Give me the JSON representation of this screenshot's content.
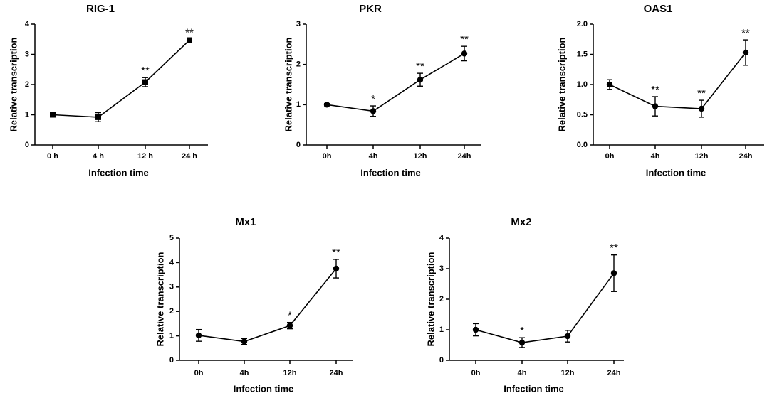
{
  "chart_data": [
    {
      "type": "line",
      "title": "RIG-1",
      "xlabel": "Infection time",
      "ylabel": "Relative transcription",
      "categories": [
        "0 h",
        "4 h",
        "12 h",
        "24 h"
      ],
      "values": [
        1.0,
        0.92,
        2.08,
        3.47
      ],
      "errors": [
        0.06,
        0.15,
        0.15,
        0.03
      ],
      "annotations": [
        "",
        "",
        "**",
        "**"
      ],
      "ylim": [
        0,
        4
      ],
      "yticks": [
        "0",
        "1",
        "2",
        "3",
        "4"
      ],
      "marker": "square"
    },
    {
      "type": "line",
      "title": "PKR",
      "xlabel": "Infection time",
      "ylabel": "Relative transcription",
      "categories": [
        "0h",
        "4h",
        "12h",
        "24h"
      ],
      "values": [
        1.0,
        0.84,
        1.62,
        2.27
      ],
      "errors": [
        0.03,
        0.13,
        0.16,
        0.18
      ],
      "annotations": [
        "",
        "*",
        "**",
        "**"
      ],
      "ylim": [
        0,
        3
      ],
      "yticks": [
        "0",
        "1",
        "2",
        "3"
      ],
      "marker": "circle"
    },
    {
      "type": "line",
      "title": "OAS1",
      "xlabel": "Infection time",
      "ylabel": "Relative transcription",
      "categories": [
        "0h",
        "4h",
        "12h",
        "24h"
      ],
      "values": [
        1.0,
        0.64,
        0.6,
        1.53
      ],
      "errors": [
        0.08,
        0.16,
        0.14,
        0.21
      ],
      "annotations": [
        "",
        "**",
        "**",
        "**"
      ],
      "ylim": [
        0,
        2
      ],
      "yticks": [
        "0.0",
        "0.5",
        "1.0",
        "1.5",
        "2.0"
      ],
      "marker": "circle"
    },
    {
      "type": "line",
      "title": "Mx1",
      "xlabel": "Infection time",
      "ylabel": "Relative transcription",
      "categories": [
        "0h",
        "4h",
        "12h",
        "24h"
      ],
      "values": [
        1.02,
        0.77,
        1.42,
        3.75
      ],
      "errors": [
        0.24,
        0.12,
        0.13,
        0.38
      ],
      "annotations": [
        "",
        "",
        "*",
        "**"
      ],
      "ylim": [
        0,
        5
      ],
      "yticks": [
        "0",
        "1",
        "2",
        "3",
        "4",
        "5"
      ],
      "marker": "circle"
    },
    {
      "type": "line",
      "title": "Mx2",
      "xlabel": "Infection time",
      "ylabel": "Relative transcription",
      "categories": [
        "0h",
        "4h",
        "12h",
        "24h"
      ],
      "values": [
        1.0,
        0.58,
        0.79,
        2.85
      ],
      "errors": [
        0.2,
        0.16,
        0.19,
        0.6
      ],
      "annotations": [
        "",
        "*",
        "",
        "**"
      ],
      "ylim": [
        0,
        4
      ],
      "yticks": [
        "0",
        "1",
        "2",
        "3",
        "4"
      ],
      "marker": "circle"
    }
  ]
}
